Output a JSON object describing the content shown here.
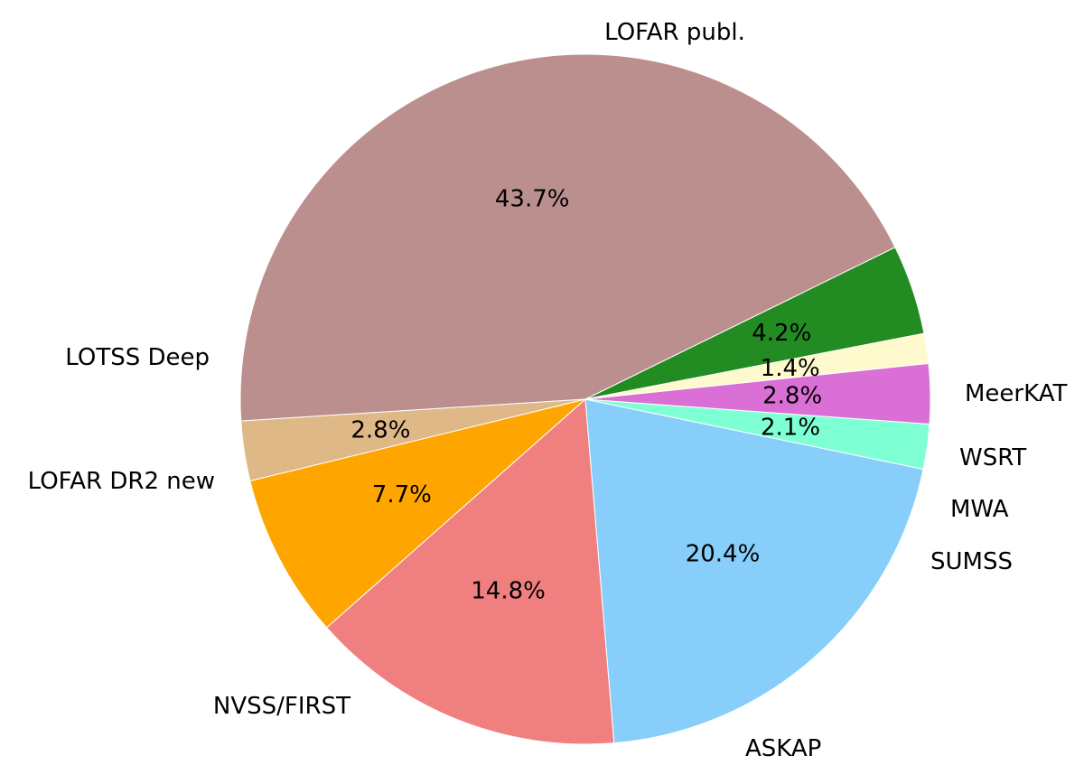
{
  "chart_data": {
    "type": "pie",
    "start_angle_deg": 11,
    "direction": "counterclockwise",
    "slices": [
      {
        "label": "MeerKAT",
        "value": 4.2,
        "pct_label": "4.2%",
        "color": "#228b22"
      },
      {
        "label": "LOFAR publ.",
        "value": 43.7,
        "pct_label": "43.7%",
        "color": "#bc8f8f"
      },
      {
        "label": "LOTSS Deep",
        "value": 2.8,
        "pct_label": "2.8%",
        "color": "#deb887"
      },
      {
        "label": "LOFAR DR2 new",
        "value": 7.7,
        "pct_label": "7.7%",
        "color": "#ffa500"
      },
      {
        "label": "NVSS/FIRST",
        "value": 14.8,
        "pct_label": "14.8%",
        "color": "#f08080"
      },
      {
        "label": "ASKAP",
        "value": 20.4,
        "pct_label": "20.4%",
        "color": "#87cefa"
      },
      {
        "label": "SUMSS",
        "value": 2.1,
        "pct_label": "2.1%",
        "color": "#7fffd4"
      },
      {
        "label": "MWA",
        "value": 2.8,
        "pct_label": "2.8%",
        "color": "#da70d6"
      },
      {
        "label": "WSRT",
        "value": 1.4,
        "pct_label": "1.4%",
        "color": "#fffacd"
      }
    ]
  }
}
